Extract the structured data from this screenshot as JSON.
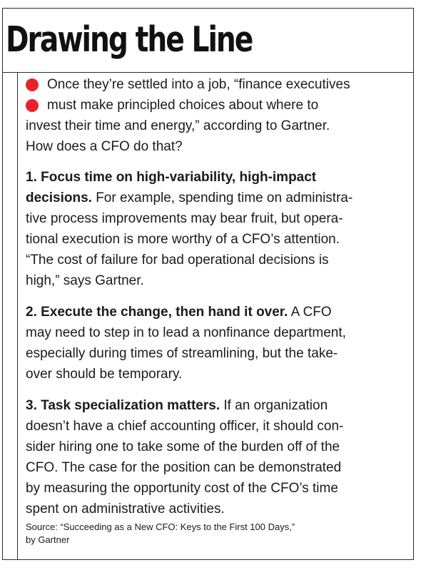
{
  "title": "Drawing the Line",
  "intro": {
    "lines": [
      "Once they’re settled into a job, “finance executives",
      "must make principled choices about where to",
      "invest their time and energy,” according to Gartner.",
      "How does a CFO do that?"
    ],
    "bullet_color": "#e8232b"
  },
  "sections": [
    {
      "lines": [
        {
          "bold": "1. Focus time on high-variability, high-impact",
          "rest": ""
        },
        {
          "bold": "decisions.",
          "rest": " For example, spending time on administra-"
        },
        {
          "bold": "",
          "rest": "tive process improvements may bear fruit, but opera-"
        },
        {
          "bold": "",
          "rest": "tional execution is more worthy of a CFO’s attention."
        },
        {
          "bold": "",
          "rest": "“The cost of failure for bad operational decisions is"
        },
        {
          "bold": "",
          "rest": "high,” says Gartner."
        }
      ]
    },
    {
      "lines": [
        {
          "bold": "2. Execute the change, then hand it over.",
          "rest": " A CFO"
        },
        {
          "bold": "",
          "rest": "may need to step in to lead a nonfinance department,"
        },
        {
          "bold": "",
          "rest": "especially during times of streamlining, but the take-"
        },
        {
          "bold": "",
          "rest": "over should be temporary."
        }
      ]
    },
    {
      "lines": [
        {
          "bold": "3. Task specialization matters.",
          "rest": " If an organization"
        },
        {
          "bold": "",
          "rest": "doesn’t have a chief accounting officer, it should con-"
        },
        {
          "bold": "",
          "rest": "sider hiring one to take some of the burden off of the"
        },
        {
          "bold": "",
          "rest": "CFO. The case for the position can be demonstrated"
        },
        {
          "bold": "",
          "rest": "by measuring the opportunity cost of the CFO’s time"
        },
        {
          "bold": "",
          "rest": "spent on administrative activities."
        }
      ]
    }
  ],
  "source": {
    "lines": [
      "Source: “Succeeding as a New CFO: Keys to the First 100 Days,”",
      "by Gartner"
    ]
  }
}
